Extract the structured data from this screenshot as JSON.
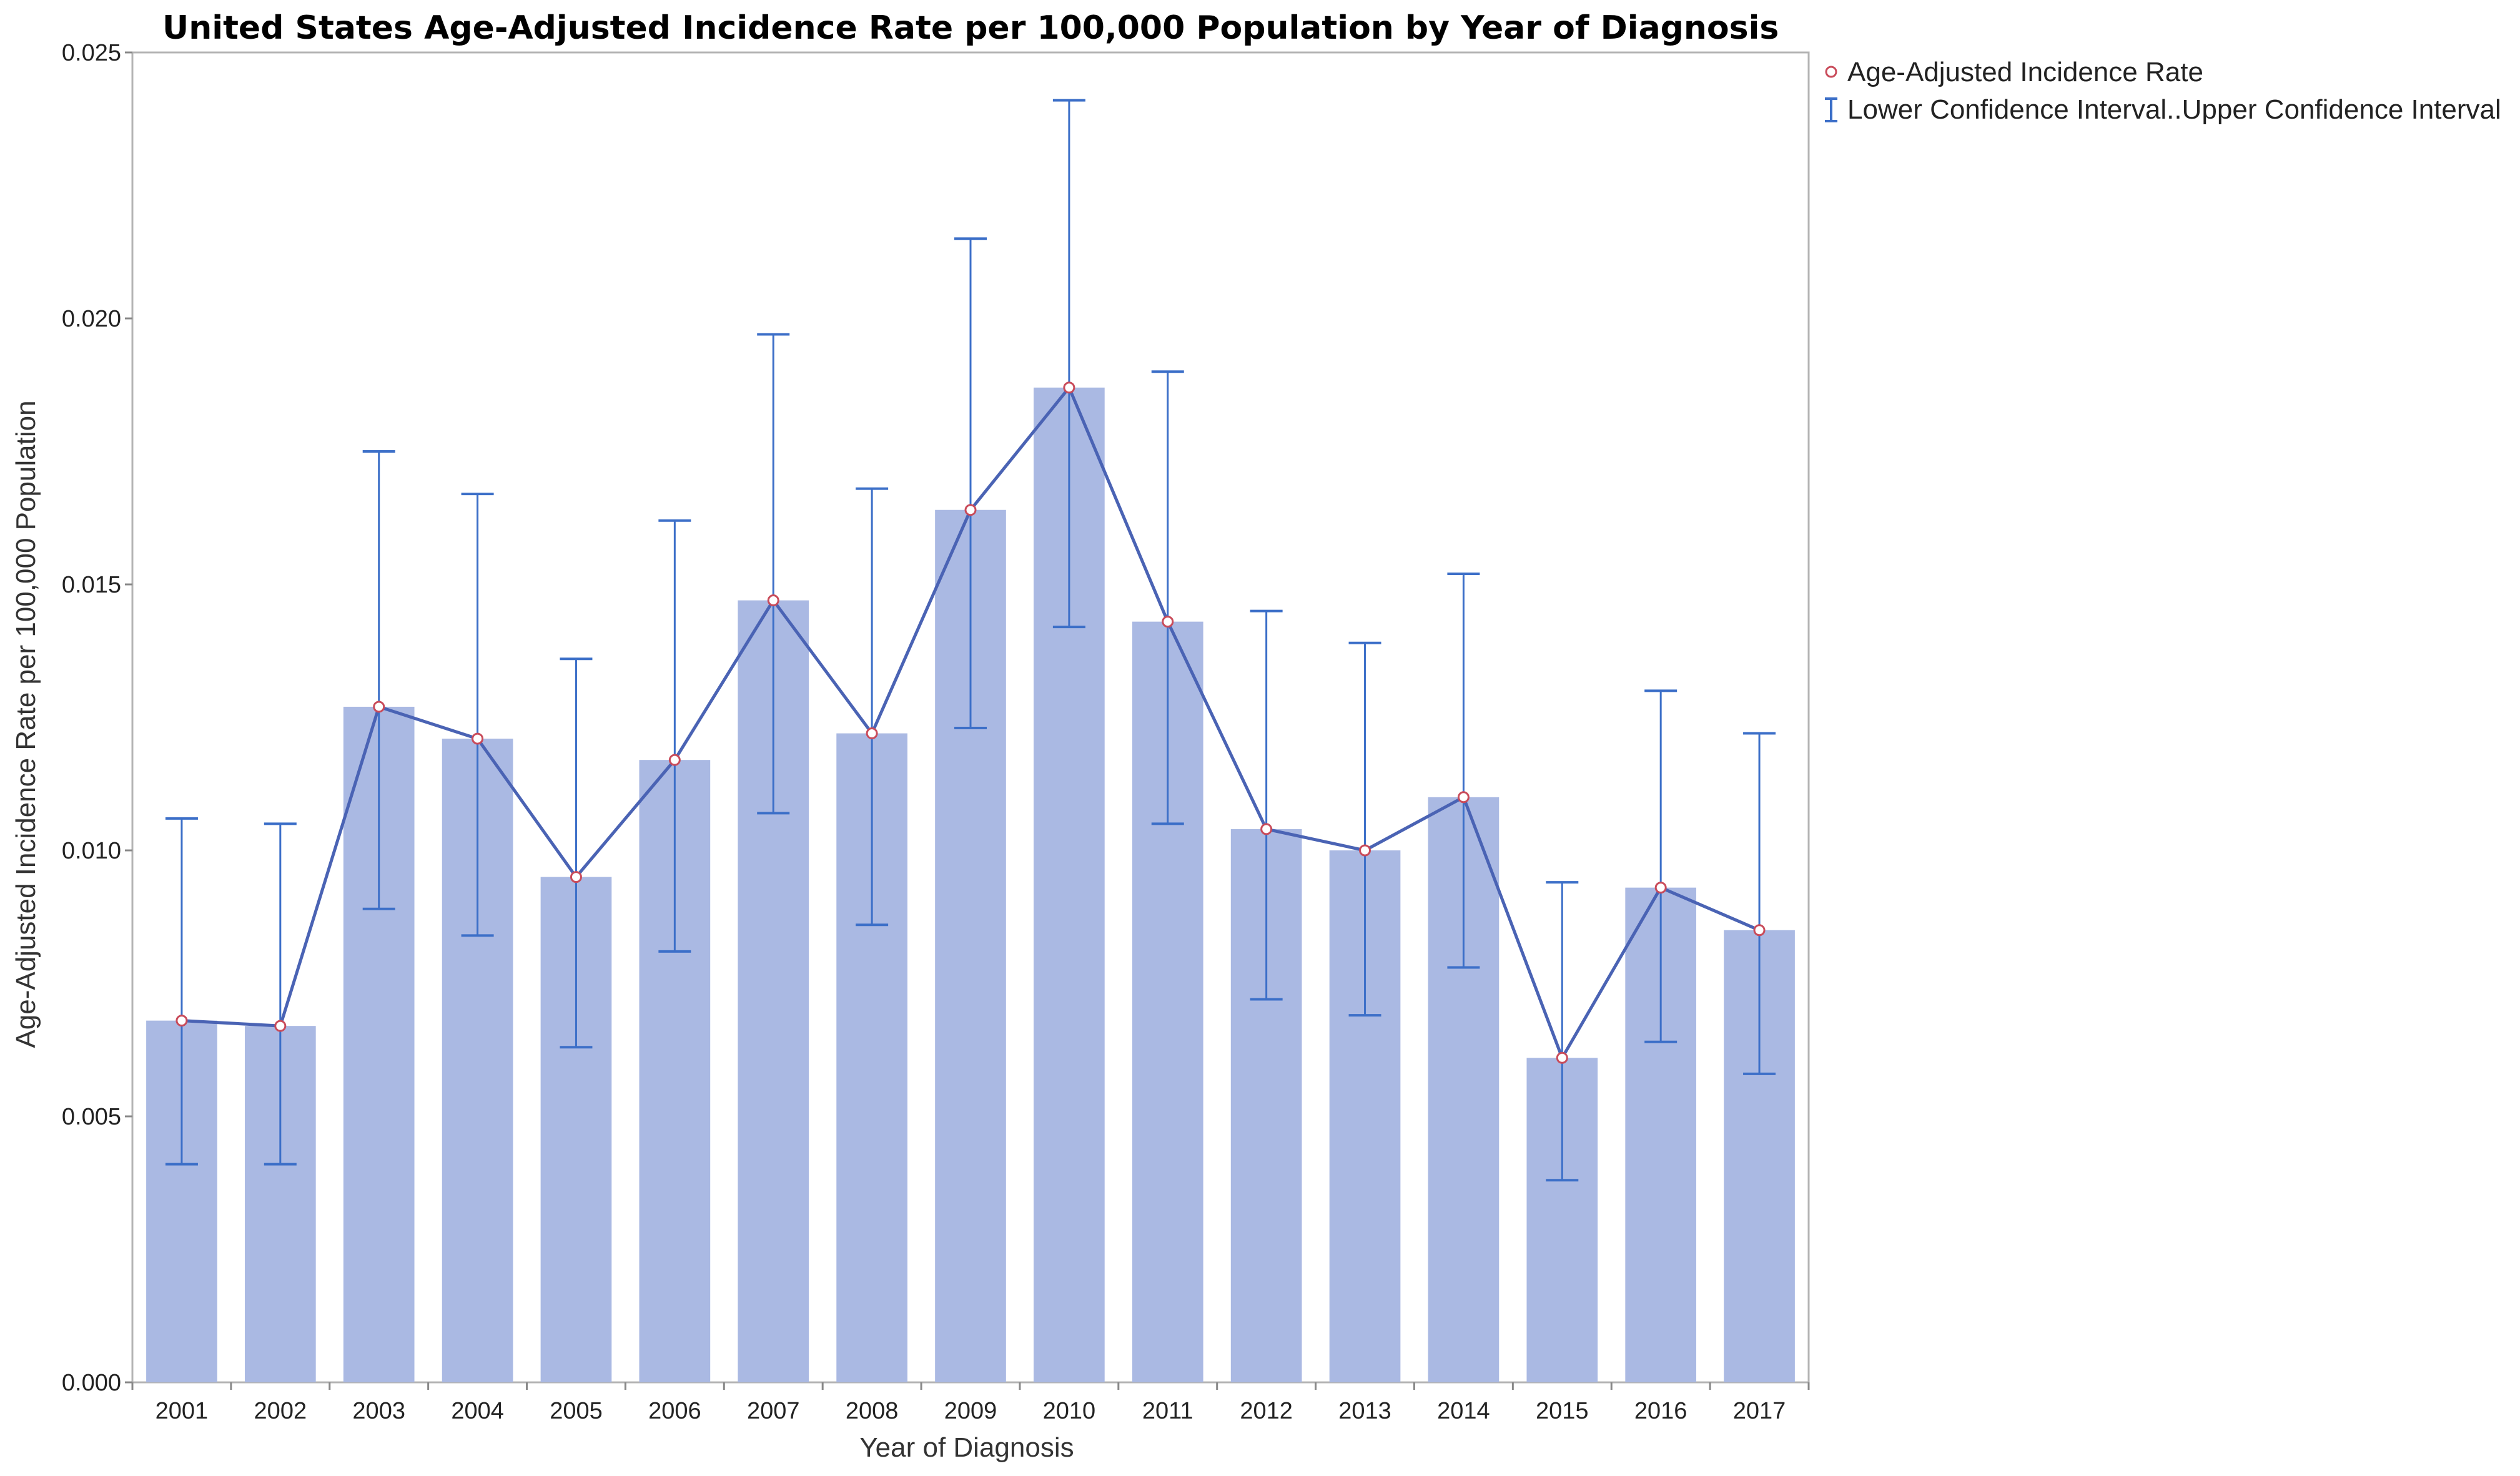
{
  "chart_data": {
    "type": "bar",
    "title": "United States Age-Adjusted Incidence Rate per 100,000 Population by Year of Diagnosis",
    "xlabel": "Year of Diagnosis",
    "ylabel": "Age-Adjusted Incidence Rate per 100,000 Population",
    "ylim": [
      0,
      0.025
    ],
    "yticks": [
      "0.000",
      "0.005",
      "0.010",
      "0.015",
      "0.020",
      "0.025"
    ],
    "categories": [
      "2001",
      "2002",
      "2003",
      "2004",
      "2005",
      "2006",
      "2007",
      "2008",
      "2009",
      "2010",
      "2011",
      "2012",
      "2013",
      "2014",
      "2015",
      "2016",
      "2017"
    ],
    "series": [
      {
        "name": "Age-Adjusted Incidence Rate",
        "values": [
          0.0068,
          0.0067,
          0.0127,
          0.0121,
          0.0095,
          0.0117,
          0.0147,
          0.0122,
          0.0164,
          0.0187,
          0.0143,
          0.0104,
          0.01,
          0.011,
          0.0061,
          0.0093,
          0.0085
        ]
      }
    ],
    "error_bars": {
      "name": "Lower Confidence Interval..Upper Confidence Interval",
      "lower": [
        0.0041,
        0.0041,
        0.0089,
        0.0084,
        0.0063,
        0.0081,
        0.0107,
        0.0086,
        0.0123,
        0.0142,
        0.0105,
        0.0072,
        0.0069,
        0.0078,
        0.0038,
        0.0064,
        0.0058
      ],
      "upper": [
        0.0106,
        0.0105,
        0.0175,
        0.0167,
        0.0136,
        0.0162,
        0.0197,
        0.0168,
        0.0215,
        0.0241,
        0.019,
        0.0145,
        0.0139,
        0.0152,
        0.0094,
        0.013,
        0.0122
      ]
    },
    "legend_position": "top-right",
    "grid": false,
    "colors": {
      "bar": "#aab9e3",
      "line": "#4a63b4",
      "marker": "#c94b5a",
      "error_bar": "#3c6fc8",
      "frame": "#b4b4b4"
    }
  }
}
